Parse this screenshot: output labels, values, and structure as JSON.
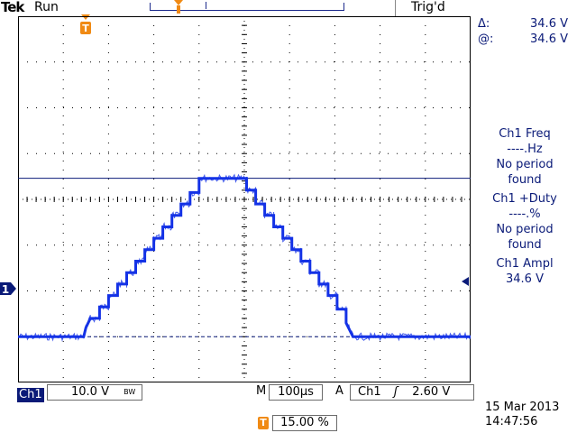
{
  "header": {
    "brand": "Tek",
    "status": "Run",
    "trigger_state": "Trig'd",
    "trigger_marker": "T"
  },
  "cursor_readout": {
    "delta_label": "Δ:",
    "delta_value": "34.6 V",
    "at_label": "@:",
    "at_value": "34.6 V"
  },
  "measurements": [
    {
      "title": "Ch1 Freq",
      "value": "----.Hz",
      "line1": "No period",
      "line2": "found"
    },
    {
      "title": "Ch1 +Duty",
      "value": "----.%",
      "line1": "No period",
      "line2": "found"
    },
    {
      "title": "Ch1 Ampl",
      "value": "34.6 V"
    }
  ],
  "channel": {
    "label": "Ch1",
    "marker": "1",
    "volts_per_div": "10.0 V",
    "bw_label": "BW"
  },
  "timebase": {
    "mode": "M",
    "time_per_div": "100µs"
  },
  "trigger": {
    "mode": "A",
    "source": "Ch1",
    "slope_icon": "rising-edge-icon",
    "slope_glyph": "ʃ",
    "level": "2.60 V",
    "position": "15.00 %"
  },
  "datetime": {
    "date": "15 Mar 2013",
    "time": "14:47:56"
  },
  "colors": {
    "trace": "#1432e6",
    "ui_blue": "#0a1a78",
    "trigger_orange": "#f08a14",
    "grid": "#000000"
  },
  "chart_data": {
    "type": "line",
    "xlabel": "",
    "ylabel": "",
    "x_unit": "µs",
    "y_unit": "V",
    "x_per_div": 100,
    "y_per_div": 10,
    "xlim": [
      -150,
      850
    ],
    "ylim": [
      -10,
      70
    ],
    "series": [
      {
        "points": [
          [
            -150,
            0
          ],
          [
            -5,
            0
          ],
          [
            0,
            2
          ],
          [
            10,
            4
          ],
          [
            30,
            4
          ],
          [
            30,
            6.5
          ],
          [
            50,
            6.5
          ],
          [
            50,
            9
          ],
          [
            70,
            9
          ],
          [
            70,
            11.5
          ],
          [
            90,
            11.5
          ],
          [
            90,
            14
          ],
          [
            110,
            14
          ],
          [
            110,
            16.5
          ],
          [
            130,
            16.5
          ],
          [
            130,
            19
          ],
          [
            150,
            19
          ],
          [
            150,
            21.5
          ],
          [
            170,
            21.5
          ],
          [
            170,
            24
          ],
          [
            190,
            24
          ],
          [
            190,
            26.5
          ],
          [
            210,
            26.5
          ],
          [
            210,
            29
          ],
          [
            230,
            29
          ],
          [
            230,
            31.5
          ],
          [
            250,
            31.5
          ],
          [
            250,
            34.6
          ],
          [
            355,
            34.6
          ],
          [
            355,
            32
          ],
          [
            375,
            32
          ],
          [
            375,
            29
          ],
          [
            395,
            29
          ],
          [
            395,
            26.5
          ],
          [
            415,
            26.5
          ],
          [
            415,
            24
          ],
          [
            435,
            24
          ],
          [
            435,
            21.5
          ],
          [
            455,
            21.5
          ],
          [
            455,
            19
          ],
          [
            475,
            19
          ],
          [
            475,
            16.5
          ],
          [
            495,
            16.5
          ],
          [
            495,
            14
          ],
          [
            515,
            14
          ],
          [
            515,
            11.5
          ],
          [
            535,
            11.5
          ],
          [
            535,
            9
          ],
          [
            555,
            9
          ],
          [
            555,
            6
          ],
          [
            575,
            6
          ],
          [
            575,
            3
          ],
          [
            590,
            0
          ],
          [
            850,
            0
          ]
        ]
      }
    ],
    "cursor_level": 34.6,
    "ground_level": 0,
    "trigger_level": 2.6,
    "grid": true
  }
}
